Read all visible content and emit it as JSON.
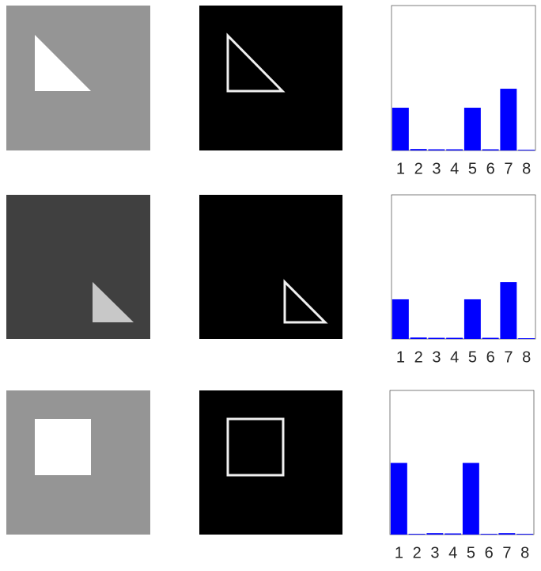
{
  "chart_data": [
    {
      "type": "bar",
      "categories": [
        "1",
        "2",
        "3",
        "4",
        "5",
        "6",
        "7",
        "8"
      ],
      "values": [
        0.295,
        0.01,
        0.008,
        0.008,
        0.295,
        0.008,
        0.426,
        0.005
      ],
      "color": "#0000ff",
      "ylim": [
        0,
        1
      ]
    },
    {
      "type": "bar",
      "categories": [
        "1",
        "2",
        "3",
        "4",
        "5",
        "6",
        "7",
        "8"
      ],
      "values": [
        0.275,
        0.01,
        0.008,
        0.008,
        0.275,
        0.008,
        0.395,
        0.005
      ],
      "color": "#0000ff",
      "ylim": [
        0,
        1
      ]
    },
    {
      "type": "bar",
      "categories": [
        "1",
        "2",
        "3",
        "4",
        "5",
        "6",
        "7",
        "8"
      ],
      "values": [
        0.497,
        0.005,
        0.01,
        0.008,
        0.497,
        0.005,
        0.01,
        0.005
      ],
      "color": "#0000ff",
      "ylim": [
        0,
        1
      ]
    }
  ]
}
